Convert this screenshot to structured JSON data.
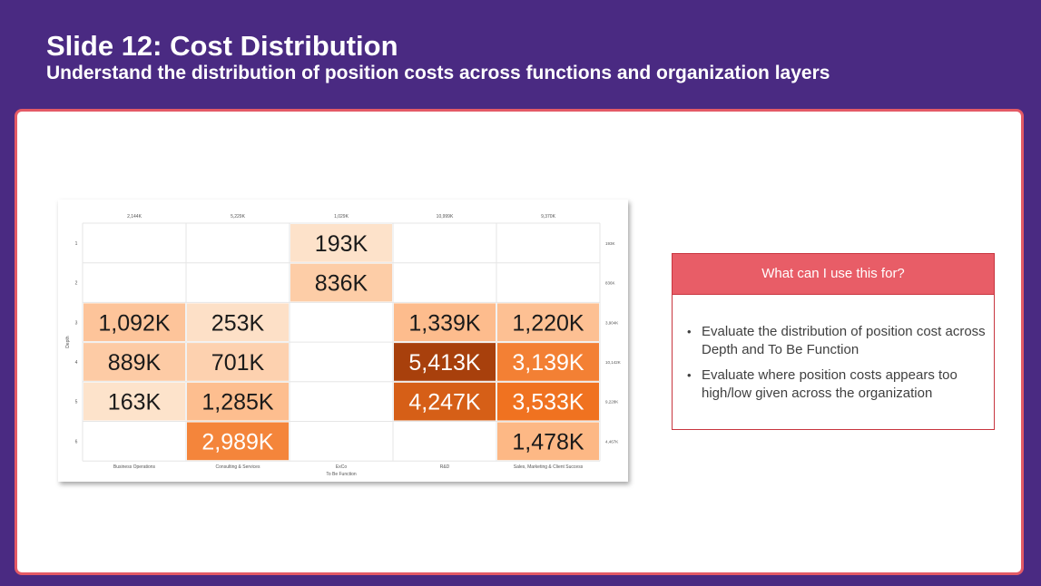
{
  "slide": {
    "title": "Slide 12: Cost Distribution",
    "subtitle": "Understand the distribution of position costs across functions and organization layers"
  },
  "info_panel": {
    "header": "What can I use this for?",
    "bullets": [
      "Evaluate the distribution of position cost across Depth and To Be Function",
      "Evaluate where position costs appears too high/low given across the organization"
    ]
  },
  "chart_data": {
    "type": "heatmap",
    "xlabel": "To Be Function",
    "ylabel": "Depth",
    "columns": [
      "Business Operations",
      "Consulting & Services",
      "ExCo",
      "R&D",
      "Sales, Marketing & Client Success"
    ],
    "rows": [
      "1",
      "2",
      "3",
      "4",
      "5",
      "6"
    ],
    "values": [
      [
        null,
        null,
        193,
        null,
        null
      ],
      [
        null,
        null,
        836,
        null,
        null
      ],
      [
        1092,
        253,
        null,
        1339,
        1220
      ],
      [
        889,
        701,
        null,
        5413,
        3139
      ],
      [
        163,
        1285,
        null,
        4247,
        3533
      ],
      [
        null,
        2989,
        null,
        null,
        1478
      ]
    ],
    "cell_labels": [
      [
        "",
        "",
        "193K",
        "",
        ""
      ],
      [
        "",
        "",
        "836K",
        "",
        ""
      ],
      [
        "1,092K",
        "253K",
        "",
        "1,339K",
        "1,220K"
      ],
      [
        "889K",
        "701K",
        "",
        "5,413K",
        "3,139K"
      ],
      [
        "163K",
        "1,285K",
        "",
        "4,247K",
        "3,533K"
      ],
      [
        "",
        "2,989K",
        "",
        "",
        "1,478K"
      ]
    ],
    "column_totals": [
      "2,144K",
      "5,229K",
      "1,029K",
      "10,999K",
      "9,370K"
    ],
    "row_totals": [
      "193K",
      "836K",
      "3,904K",
      "10,142K",
      "9,228K",
      "4,467K"
    ],
    "color_scale": {
      "low": "#fde3cc",
      "mid": "#fdb784",
      "high": "#f0701d",
      "max": "#a8400c"
    },
    "grid": true,
    "legend": "none"
  }
}
